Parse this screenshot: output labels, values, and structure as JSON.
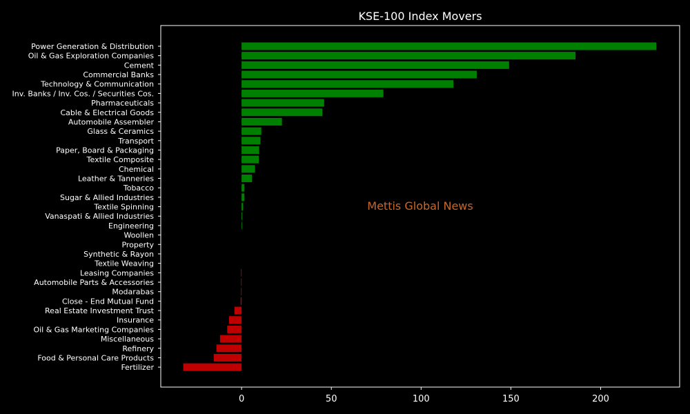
{
  "chart_data": {
    "type": "bar",
    "orientation": "horizontal",
    "title": "KSE-100 Index Movers",
    "xlabel": "",
    "ylabel": "",
    "xlim": [
      -45,
      244
    ],
    "xticks": [
      0,
      50,
      100,
      150,
      200
    ],
    "watermark": "Mettis Global News",
    "colors": {
      "positive": "#008000",
      "negative": "#c00000",
      "background": "#000000",
      "text": "#ffffff"
    },
    "grid": false,
    "categories": [
      "Power Generation & Distribution",
      "Oil & Gas Exploration Companies",
      "Cement",
      "Commercial Banks",
      "Technology & Communication",
      "Inv. Banks / Inv. Cos. / Securities Cos.",
      "Pharmaceuticals",
      "Cable & Electrical Goods",
      "Automobile Assembler",
      "Glass & Ceramics",
      "Transport",
      "Paper, Board & Packaging",
      "Textile Composite",
      "Chemical",
      "Leather & Tanneries",
      "Tobacco",
      "Sugar & Allied Industries",
      "Textile Spinning",
      "Vanaspati & Allied Industries",
      "Engineering",
      "Woollen",
      "Property",
      "Synthetic & Rayon",
      "Textile Weaving",
      "Leasing Companies",
      "Automobile Parts & Accessories",
      "Modarabas",
      "Close - End Mutual Fund",
      "Real Estate Investment Trust",
      "Insurance",
      "Oil & Gas Marketing Companies",
      "Miscellaneous",
      "Refinery",
      "Food & Personal Care Products",
      "Fertilizer"
    ],
    "values": [
      231,
      186,
      149,
      131,
      118,
      79,
      46,
      45,
      22.5,
      11,
      10.5,
      9.8,
      9.6,
      7.5,
      5.8,
      1.6,
      1.6,
      0.9,
      0.4,
      0.3,
      0,
      0,
      0,
      0,
      -0.3,
      -0.3,
      -0.3,
      -0.5,
      -4,
      -7,
      -8,
      -12,
      -14,
      -15.5,
      -32.5
    ]
  }
}
